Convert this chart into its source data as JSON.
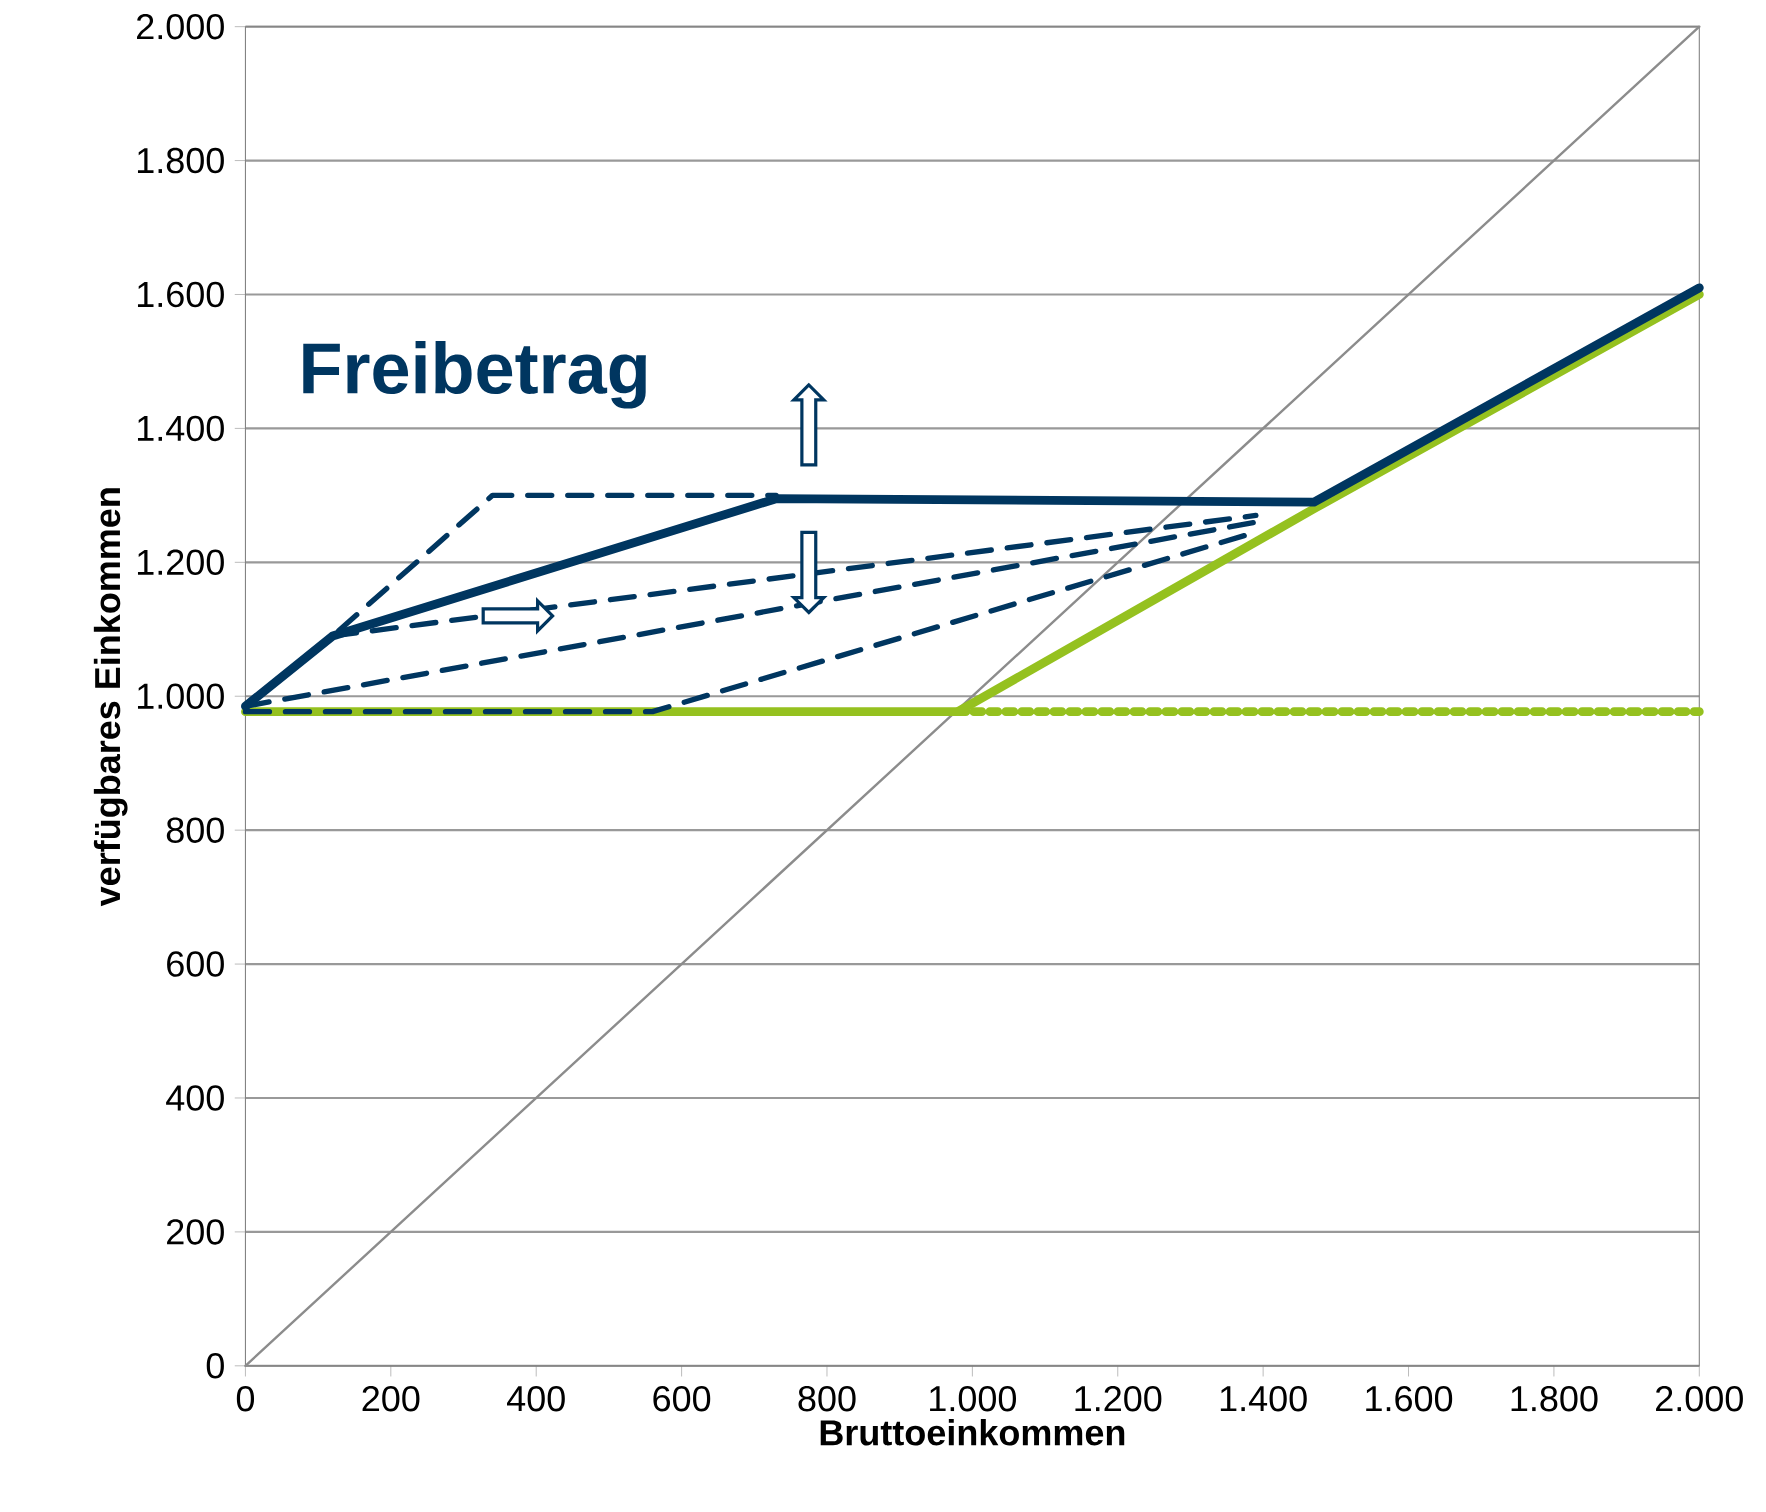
{
  "chart_data": {
    "type": "line",
    "xlabel": "Bruttoeinkommen",
    "ylabel": "verfügbares Einkommen",
    "annotations": [
      "**Freibetrag**"
    ],
    "xlim": [
      0,
      2000
    ],
    "ylim": [
      0,
      2000
    ],
    "xticks": [
      0,
      200,
      400,
      600,
      800,
      {
        "value": 1000,
        "label": "1.000"
      },
      {
        "value": 1200,
        "label": "1.200"
      },
      {
        "value": 1400,
        "label": "1.400"
      },
      {
        "value": 1600,
        "label": "1.600"
      },
      {
        "value": 1800,
        "label": "1.800"
      },
      {
        "value": 2000,
        "label": "2.000"
      }
    ],
    "yticks": [
      0,
      200,
      400,
      600,
      800,
      {
        "value": 1000,
        "label": "1.000"
      },
      {
        "value": 1200,
        "label": "1.200"
      },
      {
        "value": 1400,
        "label": "1.400"
      },
      {
        "value": 1600,
        "label": "1.600"
      },
      {
        "value": 1800,
        "label": "1.800"
      },
      {
        "value": 2000,
        "label": "2.000"
      }
    ],
    "grid": "y",
    "legend": false,
    "marker": "none",
    "series": [
      {
        "color": "#8c8c8c",
        "line_style": "solid",
        "x": [
          0,
          2000
        ],
        "values": [
          0,
          2000
        ]
      },
      {
        "color": "#95c11f",
        "line_style": "dotted",
        "x": [
          980,
          2000
        ],
        "values": [
          977,
          977
        ]
      },
      {
        "color": "#95c11f",
        "line_style": "solid",
        "x": [
          0,
          980,
          1470,
          2000
        ],
        "values": [
          977,
          977,
          1280,
          1600
        ]
      },
      {
        "color": "#003660",
        "line_style": "dashed",
        "x": [
          0,
          120,
          340,
          730
        ],
        "values": [
          985,
          1090,
          1300,
          1300
        ]
      },
      {
        "color": "#003660",
        "line_style": "dashed",
        "x": [
          120,
          1390
        ],
        "values": [
          1090,
          1270
        ]
      },
      {
        "color": "#003660",
        "line_style": "dashed",
        "x": [
          0,
          1390
        ],
        "values": [
          985,
          1260
        ]
      },
      {
        "color": "#003660",
        "line_style": "dashed",
        "x": [
          0,
          560,
          1390
        ],
        "values": [
          977,
          977,
          1245
        ]
      },
      {
        "color": "#003660",
        "line_style": "solid",
        "x": [
          0,
          120,
          730,
          1470,
          2000
        ],
        "values": [
          985,
          1090,
          1295,
          1290,
          1610
        ]
      }
    ]
  }
}
